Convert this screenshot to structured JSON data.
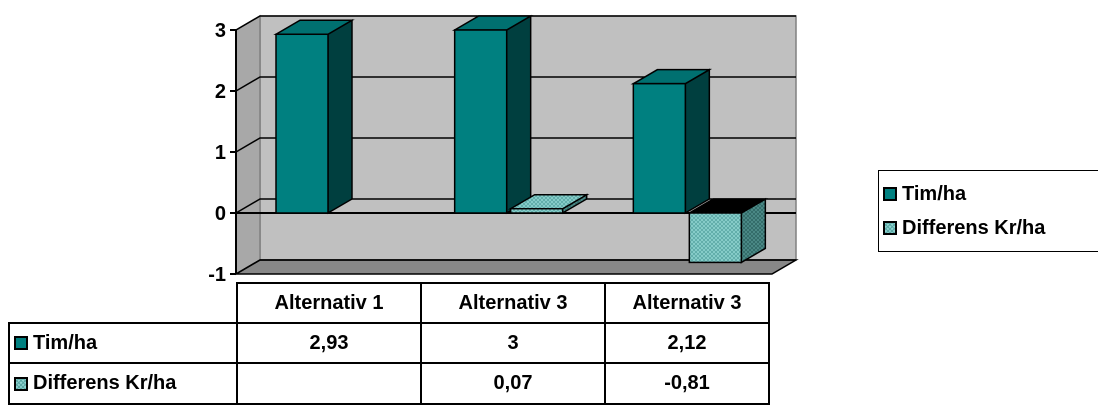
{
  "chart_data": {
    "type": "bar",
    "categories": [
      "Alternativ 1",
      "Alternativ 3",
      "Alternativ 3"
    ],
    "series": [
      {
        "name": "Tim/ha",
        "values": [
          2.93,
          3,
          2.12
        ],
        "labels": [
          "2,93",
          "3",
          "2,12"
        ],
        "color": "#008080"
      },
      {
        "name": "Differens Kr/ha",
        "values": [
          null,
          0.07,
          -0.81
        ],
        "labels": [
          "",
          "0,07",
          "-0,81"
        ],
        "color": "#8fd3d0"
      }
    ],
    "ylim": [
      -1,
      3
    ],
    "yticks": [
      3,
      2,
      1,
      0,
      -1
    ],
    "grid": true,
    "legend": "right",
    "three_d": true,
    "data_table": true
  }
}
